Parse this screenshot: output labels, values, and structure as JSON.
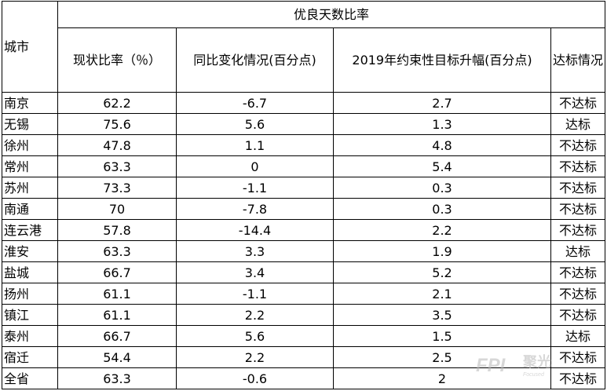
{
  "table": {
    "group_header": "优良天数比率",
    "headers": {
      "city": "城市",
      "current_ratio": "现状比率（％）",
      "yoy_change": "同比变化情况(百分点)",
      "target_2019": "2019年约束性目标升幅(百分点)",
      "status": "达标情况"
    },
    "rows": [
      {
        "city": "南京",
        "current_ratio": "62.2",
        "yoy_change": "-6.7",
        "target_2019": "2.7",
        "status": "不达标"
      },
      {
        "city": "无锡",
        "current_ratio": "75.6",
        "yoy_change": "5.6",
        "target_2019": "1.3",
        "status": "达标"
      },
      {
        "city": "徐州",
        "current_ratio": "47.8",
        "yoy_change": "1.1",
        "target_2019": "4.8",
        "status": "不达标"
      },
      {
        "city": "常州",
        "current_ratio": "63.3",
        "yoy_change": "0",
        "target_2019": "5.4",
        "status": "不达标"
      },
      {
        "city": "苏州",
        "current_ratio": "73.3",
        "yoy_change": "-1.1",
        "target_2019": "0.3",
        "status": "不达标"
      },
      {
        "city": "南通",
        "current_ratio": "70",
        "yoy_change": "-7.8",
        "target_2019": "0.3",
        "status": "不达标"
      },
      {
        "city": "连云港",
        "current_ratio": "57.8",
        "yoy_change": "-14.4",
        "target_2019": "2.2",
        "status": "不达标"
      },
      {
        "city": "淮安",
        "current_ratio": "63.3",
        "yoy_change": "3.3",
        "target_2019": "1.9",
        "status": "达标"
      },
      {
        "city": "盐城",
        "current_ratio": "66.7",
        "yoy_change": "3.4",
        "target_2019": "5.2",
        "status": "不达标"
      },
      {
        "city": "扬州",
        "current_ratio": "61.1",
        "yoy_change": "-1.1",
        "target_2019": "2.1",
        "status": "不达标"
      },
      {
        "city": "镇江",
        "current_ratio": "61.1",
        "yoy_change": "2.2",
        "target_2019": "3.5",
        "status": "不达标"
      },
      {
        "city": "泰州",
        "current_ratio": "66.7",
        "yoy_change": "5.6",
        "target_2019": "1.5",
        "status": "达标"
      },
      {
        "city": "宿迁",
        "current_ratio": "54.4",
        "yoy_change": "2.2",
        "target_2019": "2.5",
        "status": "不达标"
      },
      {
        "city": "全省",
        "current_ratio": "63.3",
        "yoy_change": "-0.6",
        "target_2019": "2",
        "status": "不达标"
      }
    ]
  },
  "watermark": {
    "brand": "聚光",
    "tagline": "Focused",
    "accent_color": "#b0b0b0"
  }
}
